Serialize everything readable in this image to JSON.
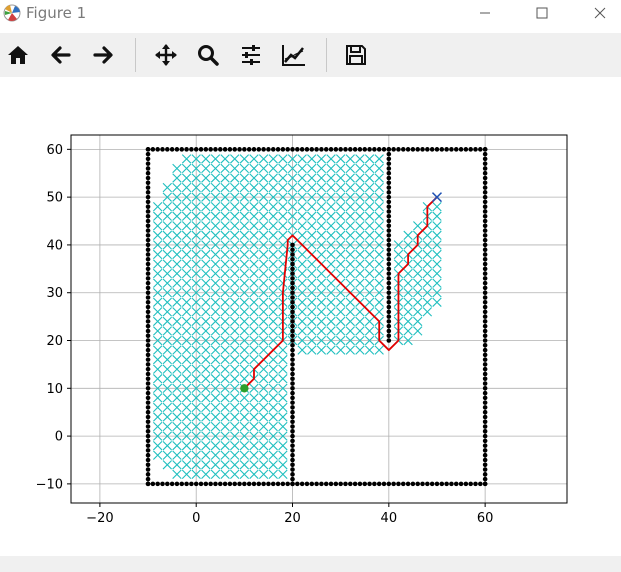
{
  "window": {
    "title": "Figure 1"
  },
  "icons": {
    "app": "matplotlib-logo-icon",
    "minimize": "minimize-icon",
    "maximize": "maximize-icon",
    "close": "close-icon"
  },
  "toolbar": {
    "buttons": [
      {
        "name": "home-button",
        "icon": "home-icon"
      },
      {
        "name": "back-button",
        "icon": "arrow-left-icon"
      },
      {
        "name": "forward-button",
        "icon": "arrow-right-icon"
      },
      {
        "name": "pan-button",
        "icon": "move-icon"
      },
      {
        "name": "zoom-button",
        "icon": "magnifier-icon"
      },
      {
        "name": "configure-subplots-button",
        "icon": "sliders-icon"
      },
      {
        "name": "edit-axis-button",
        "icon": "line-chart-icon"
      },
      {
        "name": "save-button",
        "icon": "floppy-disk-icon"
      }
    ]
  },
  "chart_data": {
    "type": "scatter",
    "title": "",
    "xlabel": "",
    "ylabel": "",
    "xlim": [
      -26,
      77
    ],
    "ylim": [
      -14,
      63
    ],
    "xticks": [
      -20,
      0,
      20,
      40,
      60
    ],
    "yticks": [
      -10,
      0,
      10,
      20,
      30,
      40,
      50,
      60
    ],
    "grid": true,
    "colors": {
      "obstacle": "#000000",
      "visited": "#1fbfbf",
      "path": "#e00000",
      "start": "#2ca02c",
      "goal": "#1f4fb4"
    },
    "obstacles": {
      "marker": "filled-circle",
      "segments": [
        {
          "from": [
            -10,
            -10
          ],
          "to": [
            60,
            -10
          ]
        },
        {
          "from": [
            60,
            -10
          ],
          "to": [
            60,
            60
          ]
        },
        {
          "from": [
            -10,
            60
          ],
          "to": [
            60,
            60
          ]
        },
        {
          "from": [
            -10,
            -10
          ],
          "to": [
            -10,
            60
          ]
        },
        {
          "from": [
            20,
            -10
          ],
          "to": [
            20,
            40
          ]
        },
        {
          "from": [
            40,
            20
          ],
          "to": [
            40,
            60
          ]
        }
      ]
    },
    "visited_region": {
      "marker": "x",
      "step": 2,
      "rows": [
        {
          "y": 58,
          "x": [
            -2,
            38
          ]
        },
        {
          "y": 56,
          "x": [
            -4,
            38
          ]
        },
        {
          "y": 54,
          "x": [
            -4,
            38
          ]
        },
        {
          "y": 52,
          "x": [
            -6,
            38
          ]
        },
        {
          "y": 50,
          "x": [
            -6,
            38
          ]
        },
        {
          "y": 48,
          "x": [
            -8,
            38
          ]
        },
        {
          "y": 46,
          "x": [
            -8,
            38
          ]
        },
        {
          "y": 44,
          "x": [
            -8,
            38
          ]
        },
        {
          "y": 42,
          "x": [
            -8,
            38
          ]
        },
        {
          "y": 40,
          "x": [
            -8,
            38
          ]
        },
        {
          "y": 38,
          "x": [
            -8,
            38
          ]
        },
        {
          "y": 36,
          "x": [
            -8,
            38
          ]
        },
        {
          "y": 34,
          "x": [
            -8,
            38
          ]
        },
        {
          "y": 32,
          "x": [
            -8,
            38
          ]
        },
        {
          "y": 30,
          "x": [
            -8,
            38
          ]
        },
        {
          "y": 28,
          "x": [
            -8,
            38
          ]
        },
        {
          "y": 26,
          "x": [
            -8,
            38
          ]
        },
        {
          "y": 24,
          "x": [
            -8,
            38
          ]
        },
        {
          "y": 22,
          "x": [
            -8,
            38
          ]
        },
        {
          "y": 20,
          "x": [
            -8,
            38
          ]
        },
        {
          "y": 18,
          "x": [
            -8,
            18
          ]
        },
        {
          "y": 18,
          "x": [
            22,
            38
          ]
        },
        {
          "y": 16,
          "x": [
            -8,
            18
          ]
        },
        {
          "y": 14,
          "x": [
            -8,
            18
          ]
        },
        {
          "y": 12,
          "x": [
            -8,
            18
          ]
        },
        {
          "y": 10,
          "x": [
            -8,
            18
          ]
        },
        {
          "y": 8,
          "x": [
            -8,
            18
          ]
        },
        {
          "y": 6,
          "x": [
            -8,
            18
          ]
        },
        {
          "y": 4,
          "x": [
            -8,
            18
          ]
        },
        {
          "y": 2,
          "x": [
            -8,
            18
          ]
        },
        {
          "y": 0,
          "x": [
            -8,
            18
          ]
        },
        {
          "y": -2,
          "x": [
            -8,
            18
          ]
        },
        {
          "y": -4,
          "x": [
            -8,
            18
          ]
        },
        {
          "y": -6,
          "x": [
            -6,
            18
          ]
        },
        {
          "y": -8,
          "x": [
            -4,
            18
          ]
        },
        {
          "y": 50,
          "x": [
            50,
            50
          ]
        },
        {
          "y": 48,
          "x": [
            48,
            50
          ]
        },
        {
          "y": 46,
          "x": [
            48,
            50
          ]
        },
        {
          "y": 44,
          "x": [
            46,
            50
          ]
        },
        {
          "y": 42,
          "x": [
            44,
            50
          ]
        },
        {
          "y": 40,
          "x": [
            42,
            50
          ]
        },
        {
          "y": 38,
          "x": [
            42,
            50
          ]
        },
        {
          "y": 36,
          "x": [
            42,
            50
          ]
        },
        {
          "y": 34,
          "x": [
            42,
            50
          ]
        },
        {
          "y": 32,
          "x": [
            42,
            50
          ]
        },
        {
          "y": 30,
          "x": [
            42,
            50
          ]
        },
        {
          "y": 28,
          "x": [
            42,
            50
          ]
        },
        {
          "y": 26,
          "x": [
            42,
            48
          ]
        },
        {
          "y": 24,
          "x": [
            42,
            46
          ]
        },
        {
          "y": 22,
          "x": [
            42,
            46
          ]
        },
        {
          "y": 20,
          "x": [
            42,
            44
          ]
        }
      ]
    },
    "path": {
      "x": [
        10,
        12,
        12,
        14,
        16,
        18,
        18,
        19,
        19,
        20,
        22,
        24,
        26,
        28,
        30,
        32,
        34,
        36,
        38,
        38,
        40,
        42,
        42,
        44,
        44,
        46,
        46,
        48,
        48,
        50
      ],
      "y": [
        10,
        12,
        14,
        16,
        18,
        20,
        30,
        40,
        41,
        42,
        40,
        38,
        36,
        34,
        32,
        30,
        28,
        26,
        24,
        20,
        18,
        20,
        34,
        36,
        38,
        40,
        42,
        44,
        48,
        50
      ]
    },
    "start": {
      "x": 10,
      "y": 10
    },
    "goal": {
      "x": 50,
      "y": 50
    }
  }
}
